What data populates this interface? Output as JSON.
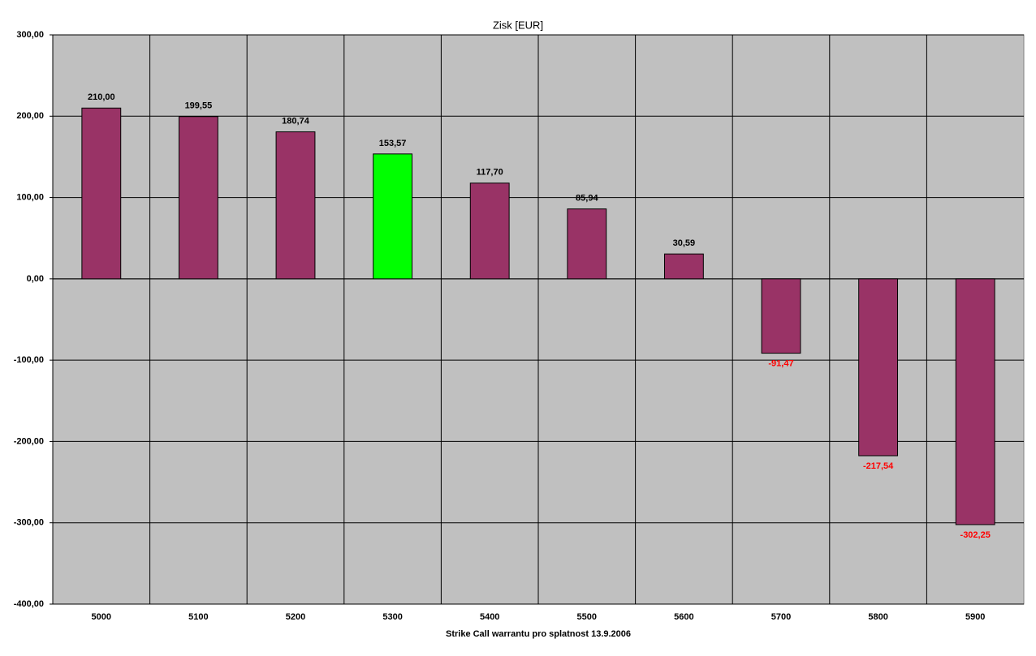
{
  "chart_data": {
    "type": "bar",
    "title": "Zisk [EUR]",
    "x_label": "Strike Call warrantu pro splatnost 13.9.2006",
    "categories": [
      "5000",
      "5100",
      "5200",
      "5300",
      "5400",
      "5500",
      "5600",
      "5700",
      "5800",
      "5900"
    ],
    "values": [
      210,
      199.55,
      180.74,
      153.57,
      117.7,
      85.94,
      30.59,
      -91.47,
      -217.54,
      -302.25
    ],
    "value_labels": [
      "210,00",
      "199,55",
      "180,74",
      "153,57",
      "117,70",
      "85,94",
      "30,59",
      "-91,47",
      "-217,54",
      "-302,25"
    ],
    "colors": [
      "#993366",
      "#993366",
      "#993366",
      "#00ff00",
      "#993366",
      "#993366",
      "#993366",
      "#993366",
      "#993366",
      "#993366"
    ],
    "negative_label_color": "#ff0000",
    "plot_background": "#c0c0c0",
    "ylim": [
      -400,
      300
    ],
    "yticks": [
      {
        "value": -400,
        "label": "-400,00"
      },
      {
        "value": -300,
        "label": "-300,00"
      },
      {
        "value": -200,
        "label": "-200,00"
      },
      {
        "value": -100,
        "label": "-100,00"
      },
      {
        "value": 0,
        "label": "0,00"
      },
      {
        "value": 100,
        "label": "100,00"
      },
      {
        "value": 200,
        "label": "200,00"
      },
      {
        "value": 300,
        "label": "300,00"
      }
    ],
    "grid": true
  }
}
